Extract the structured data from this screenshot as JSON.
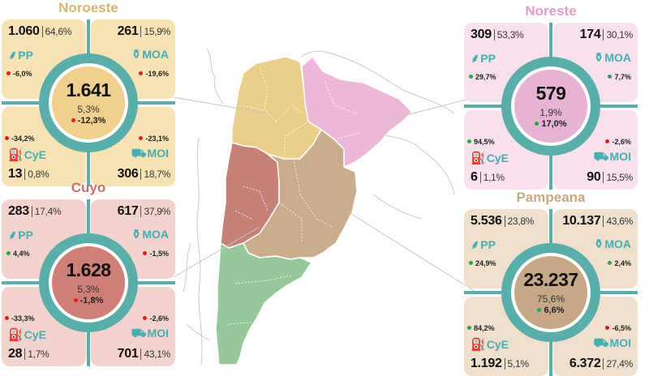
{
  "colors": {
    "teal": "#5aaeaa",
    "label_teal": "#46aeb1",
    "negative": "#e02020",
    "positive": "#27a745"
  },
  "quadrant_icons": {
    "PP": "wheat-icon",
    "MOA": "bottle-icon",
    "CyE": "fuel-pump-icon",
    "MOI": "truck-icon"
  },
  "regions": [
    {
      "id": "noroeste",
      "title": "Noroeste",
      "title_color": "#d8b56e",
      "card_color": "#f6e2b5",
      "center_color": "#f1d08e",
      "map_color": "#ecce8b",
      "center": {
        "total": "1.641",
        "share": "5,3%",
        "var": "-12,3%",
        "var_sign": "neg"
      },
      "quadrants": {
        "PP": {
          "value": "1.060",
          "share": "64,6%",
          "var": "-6,0%",
          "var_sign": "neg"
        },
        "MOA": {
          "value": "261",
          "share": "15,9%",
          "var": "-19,6%",
          "var_sign": "neg"
        },
        "CyE": {
          "value": "13",
          "share": "0,8%",
          "var": "-34,2%",
          "var_sign": "neg"
        },
        "MOI": {
          "value": "306",
          "share": "18,7%",
          "var": "-23,1%",
          "var_sign": "neg"
        }
      }
    },
    {
      "id": "noreste",
      "title": "Noreste",
      "title_color": "#e39cc8",
      "card_color": "#f8e1ec",
      "center_color": "#e7b3d3",
      "map_color": "#edb8d7",
      "center": {
        "total": "579",
        "share": "1,9%",
        "var": "17,0%",
        "var_sign": "pos"
      },
      "quadrants": {
        "PP": {
          "value": "309",
          "share": "53,3%",
          "var": "29,7%",
          "var_sign": "pos"
        },
        "MOA": {
          "value": "174",
          "share": "30,1%",
          "var": "7,7%",
          "var_sign": "pos"
        },
        "CyE": {
          "value": "6",
          "share": "1,1%",
          "var": "94,5%",
          "var_sign": "pos"
        },
        "MOI": {
          "value": "90",
          "share": "15,5%",
          "var": "-2,6%",
          "var_sign": "neg"
        }
      }
    },
    {
      "id": "cuyo",
      "title": "Cuyo",
      "title_color": "#c8706a",
      "card_color": "#f2d3ce",
      "center_color": "#cf7f78",
      "map_color": "#c58078",
      "center": {
        "total": "1.628",
        "share": "5,3%",
        "var": "-1,8%",
        "var_sign": "neg"
      },
      "quadrants": {
        "PP": {
          "value": "283",
          "share": "17,4%",
          "var": "4,4%",
          "var_sign": "pos"
        },
        "MOA": {
          "value": "617",
          "share": "37,9%",
          "var": "-1,5%",
          "var_sign": "neg"
        },
        "CyE": {
          "value": "28",
          "share": "1,7%",
          "var": "-33,3%",
          "var_sign": "neg"
        },
        "MOI": {
          "value": "701",
          "share": "43,1%",
          "var": "-2,6%",
          "var_sign": "neg"
        }
      }
    },
    {
      "id": "pampeana",
      "title": "Pampeana",
      "title_color": "#c7a982",
      "card_color": "#eee0cc",
      "center_color": "#c6a887",
      "map_color": "#c9ad8c",
      "center": {
        "total": "23.237",
        "share": "75,6%",
        "var": "6,6%",
        "var_sign": "pos"
      },
      "quadrants": {
        "PP": {
          "value": "5.536",
          "share": "23,8%",
          "var": "24,9%",
          "var_sign": "pos"
        },
        "MOA": {
          "value": "10.137",
          "share": "43,6%",
          "var": "2,4%",
          "var_sign": "pos"
        },
        "CyE": {
          "value": "1.192",
          "share": "5,1%",
          "var": "84,2%",
          "var_sign": "pos"
        },
        "MOI": {
          "value": "6.372",
          "share": "27,4%",
          "var": "-6,5%",
          "var_sign": "neg"
        }
      }
    }
  ],
  "map": {
    "patagonia_color": "#95c99a"
  }
}
